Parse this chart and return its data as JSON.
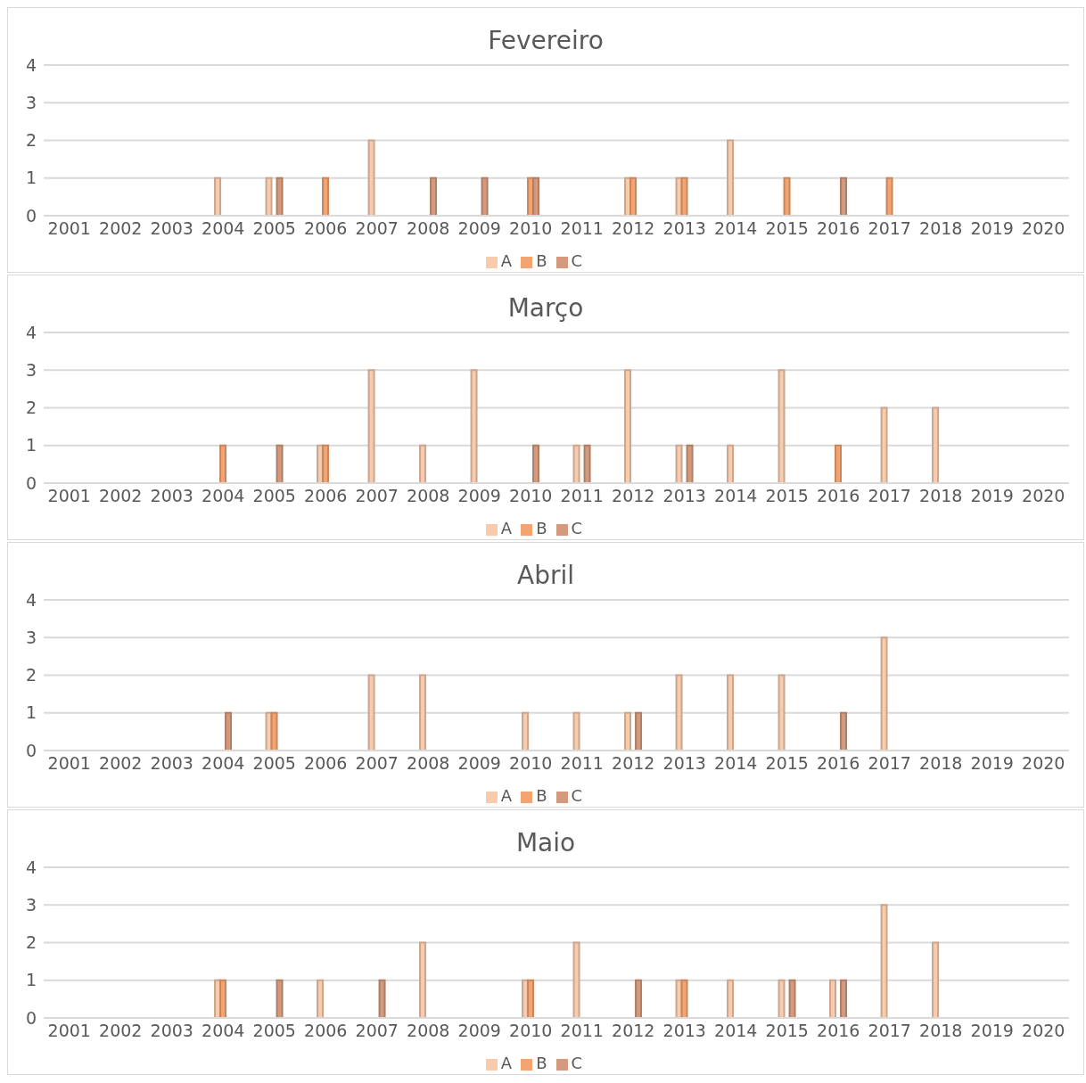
{
  "chart_data": [
    {
      "type": "bar",
      "title": "Fevereiro",
      "categories": [
        "2001",
        "2002",
        "2003",
        "2004",
        "2005",
        "2006",
        "2007",
        "2008",
        "2009",
        "2010",
        "2011",
        "2012",
        "2013",
        "2014",
        "2015",
        "2016",
        "2017",
        "2018",
        "2019",
        "2020"
      ],
      "ylim": [
        0,
        4
      ],
      "yticks": [
        0,
        1,
        2,
        3,
        4
      ],
      "grid": "y",
      "legend": "bottom",
      "series": [
        {
          "name": "A",
          "color": "#f8cbad",
          "values": [
            null,
            null,
            null,
            1,
            1,
            null,
            2,
            null,
            null,
            null,
            null,
            1,
            1,
            2,
            null,
            null,
            null,
            null,
            null,
            null
          ]
        },
        {
          "name": "B",
          "color": "#f4a470",
          "values": [
            null,
            null,
            null,
            null,
            null,
            1,
            null,
            null,
            null,
            1,
            null,
            1,
            1,
            null,
            1,
            null,
            1,
            null,
            null,
            null
          ]
        },
        {
          "name": "C",
          "color": "#d49a7e",
          "values": [
            null,
            null,
            null,
            null,
            1,
            null,
            null,
            1,
            1,
            1,
            null,
            null,
            null,
            null,
            null,
            1,
            null,
            null,
            null,
            null
          ]
        }
      ]
    },
    {
      "type": "bar",
      "title": "Março",
      "categories": [
        "2001",
        "2002",
        "2003",
        "2004",
        "2005",
        "2006",
        "2007",
        "2008",
        "2009",
        "2010",
        "2011",
        "2012",
        "2013",
        "2014",
        "2015",
        "2016",
        "2017",
        "2018",
        "2019",
        "2020"
      ],
      "ylim": [
        0,
        4
      ],
      "yticks": [
        0,
        1,
        2,
        3,
        4
      ],
      "grid": "y",
      "legend": "bottom",
      "series": [
        {
          "name": "A",
          "color": "#f8cbad",
          "values": [
            null,
            null,
            null,
            null,
            null,
            1,
            3,
            1,
            3,
            null,
            1,
            3,
            1,
            1,
            3,
            null,
            2,
            2,
            null,
            null
          ]
        },
        {
          "name": "B",
          "color": "#f4a470",
          "values": [
            null,
            null,
            null,
            1,
            null,
            1,
            null,
            null,
            null,
            null,
            null,
            null,
            null,
            null,
            null,
            1,
            null,
            null,
            null,
            null
          ]
        },
        {
          "name": "C",
          "color": "#d49a7e",
          "values": [
            null,
            null,
            null,
            null,
            1,
            null,
            null,
            null,
            null,
            1,
            1,
            null,
            1,
            null,
            null,
            null,
            null,
            null,
            null,
            null
          ]
        }
      ]
    },
    {
      "type": "bar",
      "title": "Abril",
      "categories": [
        "2001",
        "2002",
        "2003",
        "2004",
        "2005",
        "2006",
        "2007",
        "2008",
        "2009",
        "2010",
        "2011",
        "2012",
        "2013",
        "2014",
        "2015",
        "2016",
        "2017",
        "2018",
        "2019",
        "2020"
      ],
      "ylim": [
        0,
        4
      ],
      "yticks": [
        0,
        1,
        2,
        3,
        4
      ],
      "grid": "y",
      "legend": "bottom",
      "series": [
        {
          "name": "A",
          "color": "#f8cbad",
          "values": [
            null,
            null,
            null,
            null,
            1,
            null,
            2,
            2,
            null,
            1,
            1,
            1,
            2,
            2,
            2,
            null,
            3,
            null,
            null,
            null
          ]
        },
        {
          "name": "B",
          "color": "#f4a470",
          "values": [
            null,
            null,
            null,
            null,
            1,
            null,
            null,
            null,
            null,
            null,
            null,
            null,
            null,
            null,
            null,
            null,
            null,
            null,
            null,
            null
          ]
        },
        {
          "name": "C",
          "color": "#d49a7e",
          "values": [
            null,
            null,
            null,
            1,
            null,
            null,
            null,
            null,
            null,
            null,
            null,
            1,
            null,
            null,
            null,
            1,
            null,
            null,
            null,
            null
          ]
        }
      ]
    },
    {
      "type": "bar",
      "title": "Maio",
      "categories": [
        "2001",
        "2002",
        "2003",
        "2004",
        "2005",
        "2006",
        "2007",
        "2008",
        "2009",
        "2010",
        "2011",
        "2012",
        "2013",
        "2014",
        "2015",
        "2016",
        "2017",
        "2018",
        "2019",
        "2020"
      ],
      "ylim": [
        0,
        4
      ],
      "yticks": [
        0,
        1,
        2,
        3,
        4
      ],
      "grid": "y",
      "legend": "bottom",
      "series": [
        {
          "name": "A",
          "color": "#f8cbad",
          "values": [
            null,
            null,
            null,
            1,
            null,
            1,
            null,
            2,
            null,
            1,
            2,
            null,
            1,
            1,
            1,
            1,
            3,
            2,
            null,
            null
          ]
        },
        {
          "name": "B",
          "color": "#f4a470",
          "values": [
            null,
            null,
            null,
            1,
            null,
            null,
            null,
            null,
            null,
            1,
            null,
            null,
            1,
            null,
            null,
            null,
            null,
            null,
            null,
            null
          ]
        },
        {
          "name": "C",
          "color": "#d49a7e",
          "values": [
            null,
            null,
            null,
            null,
            1,
            null,
            1,
            null,
            null,
            null,
            null,
            1,
            null,
            null,
            1,
            1,
            null,
            null,
            null,
            null
          ]
        }
      ]
    }
  ]
}
